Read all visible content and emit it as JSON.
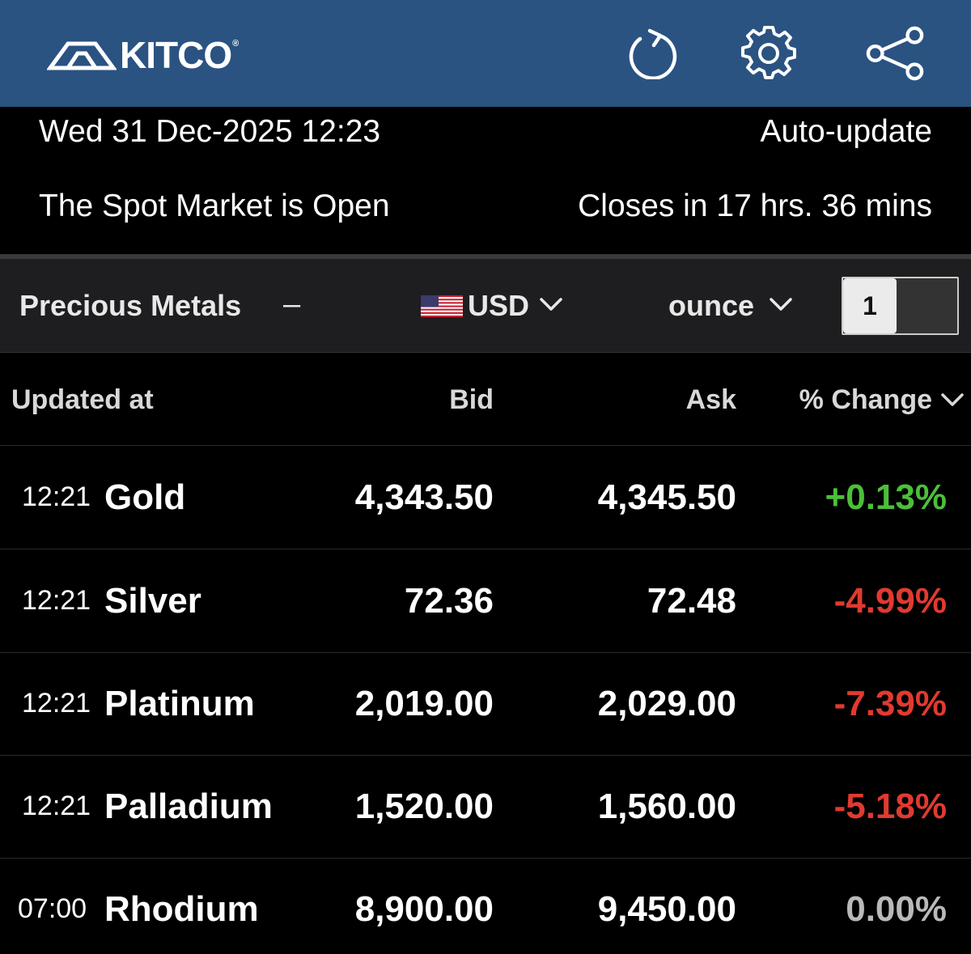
{
  "header": {
    "logo_text": "KITCO",
    "logo_mark": "®",
    "icons": [
      "refresh-icon",
      "gear-icon",
      "share-icon"
    ],
    "bg_color": "#2a5382"
  },
  "status": {
    "datetime": "Wed 31 Dec-2025 12:23",
    "auto_update": "Auto-update",
    "market_state": "The Spot Market is Open",
    "closes_in": "Closes in 17 hrs. 36 mins"
  },
  "filters": {
    "category": "Precious Metals",
    "collapse_symbol": "–",
    "currency": "USD",
    "unit": "ounce",
    "quantity": "1"
  },
  "table": {
    "headers": {
      "updated_at": "Updated at",
      "bid": "Bid",
      "ask": "Ask",
      "change": "% Change"
    },
    "rows": [
      {
        "time": "12:21",
        "name": "Gold",
        "bid": "4,343.50",
        "ask": "4,345.50",
        "change": "+0.13%",
        "trend": "pos"
      },
      {
        "time": "12:21",
        "name": "Silver",
        "bid": "72.36",
        "ask": "72.48",
        "change": "-4.99%",
        "trend": "neg"
      },
      {
        "time": "12:21",
        "name": "Platinum",
        "bid": "2,019.00",
        "ask": "2,029.00",
        "change": "-7.39%",
        "trend": "neg"
      },
      {
        "time": "12:21",
        "name": "Palladium",
        "bid": "1,520.00",
        "ask": "1,560.00",
        "change": "-5.18%",
        "trend": "neg"
      },
      {
        "time": "07:00",
        "name": "Rhodium",
        "bid": "8,900.00",
        "ask": "9,450.00",
        "change": "0.00%",
        "trend": "flat"
      }
    ]
  },
  "colors": {
    "positive": "#4cbf3a",
    "negative": "#e13a30",
    "neutral": "#b9b9b9"
  }
}
